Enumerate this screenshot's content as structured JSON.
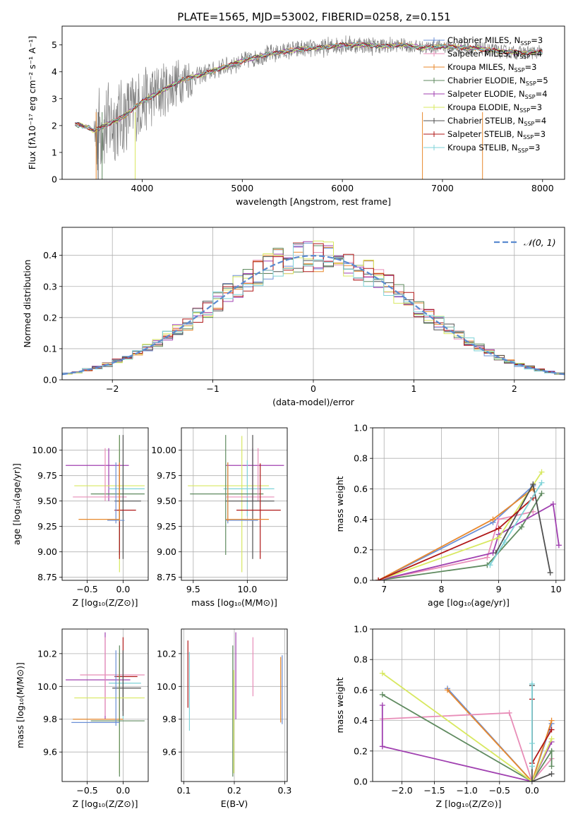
{
  "figure_title": "PLATE=1565, MJD=53002, FIBERID=0258, z=0.151",
  "colors": {
    "chabrier_miles": "#6b8fd6",
    "salpeter_miles": "#e88db8",
    "kroupa_miles": "#e8892e",
    "chabrier_elodie": "#5f8a5f",
    "salpeter_elodie": "#a040b0",
    "kroupa_elodie": "#d8e860",
    "chabrier_stelib": "#505050",
    "salpeter_stelib": "#b01818",
    "kroupa_stelib": "#7fd3d8",
    "data": "#808080",
    "gaussian": "#5b8bd0"
  },
  "chart_data": [
    {
      "id": "spectrum",
      "type": "line",
      "title": "PLATE=1565, MJD=53002, FIBERID=0258, z=0.151",
      "xlabel": "wavelength [Angstrom, rest frame]",
      "ylabel": "Flux [fλ10⁻¹⁷ erg cm⁻² s⁻¹ A⁻¹]",
      "xlim": [
        3200,
        8220
      ],
      "ylim": [
        0,
        5.7
      ],
      "xticks": [
        4000,
        5000,
        6000,
        7000,
        8000
      ],
      "yticks": [
        0,
        1,
        2,
        3,
        4,
        5
      ],
      "legend": "upper-right",
      "legend_labels": [
        "Chabrier MILES, N_SSP=3",
        "Salpeter MILES, N_SSP=4",
        "Kroupa MILES, N_SSP=3",
        "Chabrier ELODIE, N_SSP=5",
        "Salpeter ELODIE, N_SSP=4",
        "Kroupa ELODIE, N_SSP=3",
        "Chabrier STELIB, N_SSP=4",
        "Salpeter STELIB, N_SSP=3",
        "Kroupa STELIB, N_SSP=3"
      ],
      "continuum": {
        "x": [
          3330,
          3450,
          3520,
          3600,
          3800,
          4000,
          4200,
          4400,
          4600,
          4800,
          5000,
          5200,
          5400,
          5600,
          5800,
          6000,
          6200,
          6400,
          6600,
          6800,
          7000,
          7200,
          7400,
          7600,
          7800,
          8000
        ],
        "y": [
          2.05,
          1.95,
          1.8,
          1.95,
          2.3,
          2.9,
          3.3,
          3.7,
          3.9,
          4.15,
          4.4,
          4.6,
          4.75,
          4.85,
          4.9,
          5.0,
          5.0,
          4.95,
          5.0,
          4.9,
          4.95,
          4.9,
          4.85,
          4.75,
          4.7,
          4.75
        ]
      }
    },
    {
      "id": "residuals",
      "type": "step",
      "xlabel": "(data-model)/error",
      "ylabel": "Normed distribution",
      "xlim": [
        -2.5,
        2.5
      ],
      "ylim": [
        0,
        0.49
      ],
      "xticks": [
        -2,
        -1,
        0,
        1,
        2
      ],
      "yticks": [
        0.0,
        0.1,
        0.2,
        0.3,
        0.4
      ],
      "legend_label": "𝒩(0, 1)",
      "legend": "upper-right",
      "bin_width": 0.1
    },
    {
      "id": "age_vs_Z",
      "type": "errorbar",
      "xlabel": "Z [log₁₀(Z/Z⊙)]",
      "ylabel": "age  [log₁₀(age/yr)]",
      "xlim": [
        -0.85,
        0.35
      ],
      "ylim": [
        8.72,
        10.22
      ],
      "xticks": [
        -0.5,
        0.0
      ],
      "xticklabels": [
        "−0.5",
        "0.0"
      ],
      "yticks": [
        8.75,
        9.0,
        9.25,
        9.5,
        9.75,
        10.0
      ],
      "points": [
        {
          "c": "salpeter_elodie",
          "x": -0.2,
          "xe": [
            -0.8,
            0.08
          ],
          "y": 9.85,
          "ye": [
            9.5,
            10.02
          ]
        },
        {
          "c": "kroupa_elodie",
          "x": -0.05,
          "xe": [
            -0.68,
            0.3
          ],
          "y": 9.65,
          "ye": [
            8.8,
            10.14
          ]
        },
        {
          "c": "kroupa_stelib",
          "x": 0.0,
          "xe": [
            -0.2,
            0.3
          ],
          "y": 9.62,
          "ye": [
            9.35,
            9.9
          ]
        },
        {
          "c": "chabrier_elodie",
          "x": -0.05,
          "xe": [
            -0.45,
            0.3
          ],
          "y": 9.57,
          "ye": [
            8.97,
            10.15
          ]
        },
        {
          "c": "salpeter_miles",
          "x": -0.25,
          "xe": [
            -0.7,
            0.05
          ],
          "y": 9.54,
          "ye": [
            9.5,
            10.02
          ]
        },
        {
          "c": "chabrier_stelib",
          "x": 0.0,
          "xe": [
            -0.12,
            0.25
          ],
          "y": 9.5,
          "ye": [
            8.93,
            10.15
          ]
        },
        {
          "c": "salpeter_stelib",
          "x": -0.05,
          "xe": [
            -0.12,
            0.18
          ],
          "y": 9.41,
          "ye": [
            8.93,
            9.87
          ]
        },
        {
          "c": "chabrier_miles",
          "x": -0.1,
          "xe": [
            -0.22,
            0.02
          ],
          "y": 9.31,
          "ye": [
            9.28,
            9.88
          ]
        },
        {
          "c": "kroupa_miles",
          "x": -0.05,
          "xe": [
            -0.62,
            -0.05
          ],
          "y": 9.32,
          "ye": [
            9.3,
            9.88
          ]
        }
      ]
    },
    {
      "id": "age_vs_mass",
      "type": "errorbar",
      "xlabel": "mass [log₁₀(M/M⊙)]",
      "ylabel": "",
      "xlim": [
        9.39,
        10.37
      ],
      "ylim": [
        8.72,
        10.22
      ],
      "xticks": [
        9.5,
        10.0
      ],
      "xticklabels": [
        "9.5",
        "10.0"
      ],
      "yticks": [
        8.75,
        9.0,
        9.25,
        9.5,
        9.75,
        10.0
      ],
      "points": [
        {
          "c": "salpeter_elodie",
          "x": 10.05,
          "xe": [
            9.8,
            10.34
          ],
          "y": 9.85,
          "ye": [
            9.5,
            10.02
          ]
        },
        {
          "c": "kroupa_elodie",
          "x": 9.95,
          "xe": [
            9.45,
            10.2
          ],
          "y": 9.65,
          "ye": [
            8.8,
            10.14
          ]
        },
        {
          "c": "kroupa_stelib",
          "x": 10.0,
          "xe": [
            9.78,
            10.25
          ],
          "y": 9.62,
          "ye": [
            9.35,
            9.9
          ]
        },
        {
          "c": "chabrier_elodie",
          "x": 9.8,
          "xe": [
            9.47,
            10.15
          ],
          "y": 9.57,
          "ye": [
            8.97,
            10.15
          ]
        },
        {
          "c": "salpeter_miles",
          "x": 10.1,
          "xe": [
            9.8,
            10.25
          ],
          "y": 9.54,
          "ye": [
            9.5,
            10.02
          ]
        },
        {
          "c": "chabrier_stelib",
          "x": 10.05,
          "xe": [
            9.8,
            10.25
          ],
          "y": 9.5,
          "ye": [
            8.93,
            10.15
          ]
        },
        {
          "c": "salpeter_stelib",
          "x": 10.12,
          "xe": [
            9.9,
            10.31
          ],
          "y": 9.41,
          "ye": [
            8.93,
            9.87
          ]
        },
        {
          "c": "chabrier_miles",
          "x": 9.82,
          "xe": [
            9.8,
            10.1
          ],
          "y": 9.31,
          "ye": [
            9.28,
            9.88
          ]
        },
        {
          "c": "kroupa_miles",
          "x": 9.82,
          "xe": [
            9.8,
            10.2
          ],
          "y": 9.32,
          "ye": [
            9.3,
            9.88
          ]
        }
      ]
    },
    {
      "id": "massweight_vs_age",
      "type": "line",
      "xlabel": "age  [log₁₀(age/yr)]",
      "ylabel": "mass weight",
      "xlim": [
        6.8,
        10.15
      ],
      "ylim": [
        0,
        1
      ],
      "xticks": [
        7,
        8,
        9,
        10
      ],
      "yticks": [
        0.0,
        0.2,
        0.4,
        0.6,
        0.8,
        1.0
      ],
      "series": [
        {
          "c": "chabrier_miles",
          "x": [
            6.9,
            8.9,
            9.6
          ],
          "y": [
            0.0,
            0.38,
            0.62
          ]
        },
        {
          "c": "kroupa_miles",
          "x": [
            6.9,
            8.9,
            9.6
          ],
          "y": [
            0.0,
            0.4,
            0.6
          ]
        },
        {
          "c": "salpeter_miles",
          "x": [
            6.9,
            8.8,
            9.0,
            9.6
          ],
          "y": [
            0.0,
            0.15,
            0.4,
            0.45
          ]
        },
        {
          "c": "chabrier_elodie",
          "x": [
            6.9,
            8.8,
            9.4,
            9.75
          ],
          "y": [
            0.0,
            0.1,
            0.35,
            0.57
          ]
        },
        {
          "c": "salpeter_elodie",
          "x": [
            6.9,
            8.9,
            9.0,
            9.95,
            10.05
          ],
          "y": [
            0.0,
            0.18,
            0.3,
            0.5,
            0.23
          ]
        },
        {
          "c": "kroupa_elodie",
          "x": [
            6.9,
            9.0,
            9.75
          ],
          "y": [
            0.0,
            0.28,
            0.71
          ]
        },
        {
          "c": "chabrier_stelib",
          "x": [
            8.95,
            9.6,
            9.9
          ],
          "y": [
            0.18,
            0.63,
            0.05
          ]
        },
        {
          "c": "salpeter_stelib",
          "x": [
            6.9,
            9.0,
            9.6
          ],
          "y": [
            0.0,
            0.34,
            0.54
          ]
        },
        {
          "c": "kroupa_stelib",
          "x": [
            8.85,
            9.1,
            9.75
          ],
          "y": [
            0.1,
            0.25,
            0.64
          ]
        }
      ]
    },
    {
      "id": "mass_vs_Z",
      "type": "errorbar",
      "xlabel": "Z [log₁₀(Z/Z⊙)]",
      "ylabel": "mass [log₁₀(M/M⊙)]",
      "xlim": [
        -0.85,
        0.35
      ],
      "ylim": [
        9.42,
        10.35
      ],
      "xticks": [
        -0.5,
        0.0
      ],
      "xticklabels": [
        "−0.5",
        "0.0"
      ],
      "yticks": [
        9.6,
        9.8,
        10.0,
        10.2
      ],
      "points": [
        {
          "c": "salpeter_elodie",
          "x": -0.25,
          "xe": [
            -0.8,
            0.1
          ],
          "y": 10.04,
          "ye": [
            9.8,
            10.33
          ]
        },
        {
          "c": "salpeter_miles",
          "x": -0.25,
          "xe": [
            -0.6,
            0.3
          ],
          "y": 10.07,
          "ye": [
            9.82,
            10.3
          ]
        },
        {
          "c": "salpeter_stelib",
          "x": 0.0,
          "xe": [
            -0.12,
            0.2
          ],
          "y": 10.06,
          "ye": [
            9.85,
            10.3
          ]
        },
        {
          "c": "kroupa_stelib",
          "x": 0.0,
          "xe": [
            -0.2,
            0.25
          ],
          "y": 10.02,
          "ye": [
            9.8,
            10.2
          ]
        },
        {
          "c": "chabrier_stelib",
          "x": 0.0,
          "xe": [
            -0.15,
            0.25
          ],
          "y": 9.99,
          "ye": [
            9.82,
            10.22
          ]
        },
        {
          "c": "kroupa_elodie",
          "x": -0.05,
          "xe": [
            -0.68,
            0.3
          ],
          "y": 9.93,
          "ye": [
            9.47,
            10.1
          ]
        },
        {
          "c": "kroupa_miles",
          "x": -0.05,
          "xe": [
            -0.7,
            0.0
          ],
          "y": 9.8,
          "ye": [
            9.78,
            10.2
          ]
        },
        {
          "c": "chabrier_elodie",
          "x": -0.05,
          "xe": [
            -0.45,
            0.3
          ],
          "y": 9.79,
          "ye": [
            9.45,
            10.25
          ]
        },
        {
          "c": "chabrier_miles",
          "x": -0.1,
          "xe": [
            -0.72,
            -0.05
          ],
          "y": 9.78,
          "ye": [
            9.76,
            10.22
          ]
        }
      ]
    },
    {
      "id": "mass_vs_ebv",
      "type": "errorbar",
      "xlabel": "E(B-V)",
      "ylabel": "",
      "xlim": [
        0.095,
        0.305
      ],
      "ylim": [
        9.42,
        10.35
      ],
      "xticks": [
        0.1,
        0.2,
        0.3
      ],
      "xticklabels": [
        "0.1",
        "0.2",
        "0.3"
      ],
      "yticks": [
        9.6,
        9.8,
        10.0,
        10.2
      ],
      "points": [
        {
          "c": "salpeter_stelib",
          "x": 0.108,
          "y": 10.06,
          "ye": [
            9.87,
            10.28
          ]
        },
        {
          "c": "kroupa_stelib",
          "x": 0.111,
          "y": 9.95,
          "ye": [
            9.73,
            10.21
          ]
        },
        {
          "c": "chabrier_elodie",
          "x": 0.197,
          "y": 9.8,
          "ye": [
            9.45,
            10.25
          ]
        },
        {
          "c": "kroupa_elodie",
          "x": 0.199,
          "y": 9.9,
          "ye": [
            9.47,
            10.1
          ]
        },
        {
          "c": "salpeter_elodie",
          "x": 0.203,
          "y": 10.04,
          "ye": [
            9.8,
            10.33
          ]
        },
        {
          "c": "salpeter_miles",
          "x": 0.237,
          "y": 10.07,
          "ye": [
            9.94,
            10.3
          ]
        },
        {
          "c": "kroupa_miles",
          "x": 0.292,
          "y": 9.8,
          "ye": [
            9.78,
            10.18
          ]
        },
        {
          "c": "chabrier_miles",
          "x": 0.295,
          "y": 9.79,
          "ye": [
            9.77,
            10.19
          ]
        }
      ]
    },
    {
      "id": "massweight_vs_Z",
      "type": "line",
      "xlabel": "Z [log₁₀(Z/Z⊙)]",
      "ylabel": "mass weight",
      "xlim": [
        -2.45,
        0.5
      ],
      "ylim": [
        0,
        1
      ],
      "xticks": [
        -2.0,
        -1.5,
        -1.0,
        -0.5,
        0.0
      ],
      "xticklabels": [
        "−2.0",
        "−1.5",
        "−1.0",
        "−0.5",
        "0.0"
      ],
      "yticks": [
        0.0,
        0.2,
        0.4,
        0.6,
        0.8,
        1.0
      ],
      "series": [
        {
          "c": "chabrier_miles",
          "x": [
            -1.3,
            0.0,
            0.3
          ],
          "y": [
            0.61,
            0.0,
            0.38
          ]
        },
        {
          "c": "kroupa_miles",
          "x": [
            -1.3,
            0.0,
            0.3
          ],
          "y": [
            0.6,
            0.0,
            0.4
          ]
        },
        {
          "c": "salpeter_miles",
          "x": [
            -2.3,
            -0.35,
            0.0,
            0.3
          ],
          "y": [
            0.41,
            0.45,
            0.0,
            0.15
          ]
        },
        {
          "c": "chabrier_elodie",
          "x": [
            -2.3,
            0.0,
            0.3,
            0.3
          ],
          "y": [
            0.57,
            0.0,
            0.2,
            0.1
          ]
        },
        {
          "c": "salpeter_elodie",
          "x": [
            -2.3,
            -2.3,
            0.0,
            0.3
          ],
          "y": [
            0.5,
            0.23,
            0.0,
            0.26
          ]
        },
        {
          "c": "kroupa_elodie",
          "x": [
            -2.3,
            0.0,
            0.3
          ],
          "y": [
            0.71,
            0.0,
            0.28
          ]
        },
        {
          "c": "chabrier_stelib",
          "x": [
            0.0,
            0.0,
            0.3
          ],
          "y": [
            0.63,
            0.0,
            0.05
          ]
        },
        {
          "c": "salpeter_stelib",
          "x": [
            0.0,
            0.0,
            0.3
          ],
          "y": [
            0.54,
            0.12,
            0.34
          ]
        },
        {
          "c": "kroupa_stelib",
          "x": [
            0.0,
            0.0,
            0.0
          ],
          "y": [
            0.64,
            0.25,
            0.1
          ]
        }
      ]
    }
  ]
}
